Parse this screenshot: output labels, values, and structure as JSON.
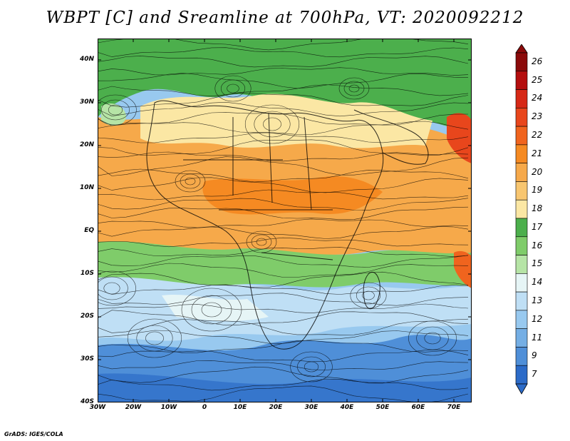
{
  "title": "WBPT [C] and Sreamline at 700hPa, VT: 2020092212",
  "map": {
    "lat_range": [
      -40,
      45
    ],
    "lon_range": [
      -30,
      75
    ],
    "lat_ticks": [
      "40N",
      "30N",
      "20N",
      "10N",
      "EQ",
      "10S",
      "20S",
      "30S",
      "40S"
    ],
    "lon_ticks": [
      "30W",
      "20W",
      "10W",
      "0",
      "10E",
      "20E",
      "30E",
      "40E",
      "50E",
      "60E",
      "70E"
    ],
    "layers": [
      "wet-bulb potential temperature shading",
      "700hPa streamlines",
      "coastlines",
      "country borders"
    ]
  },
  "colorbar": {
    "labels": [
      "26",
      "25",
      "24",
      "23",
      "22",
      "21",
      "20",
      "19",
      "18",
      "17",
      "16",
      "15",
      "14",
      "13",
      "12",
      "11",
      "9",
      "7"
    ],
    "colors": [
      "#8b0a0a",
      "#b40e0e",
      "#d62816",
      "#e8461c",
      "#f0641e",
      "#f58a22",
      "#f6a94a",
      "#f8c670",
      "#fbe7a4",
      "#4caf4c",
      "#7fcc6a",
      "#b6e4a6",
      "#e6f5f6",
      "#bfdff5",
      "#98c9ef",
      "#74aee4",
      "#4f8fd8",
      "#2c6bc8"
    ]
  },
  "credit": "GrADS: IGES/COLA"
}
